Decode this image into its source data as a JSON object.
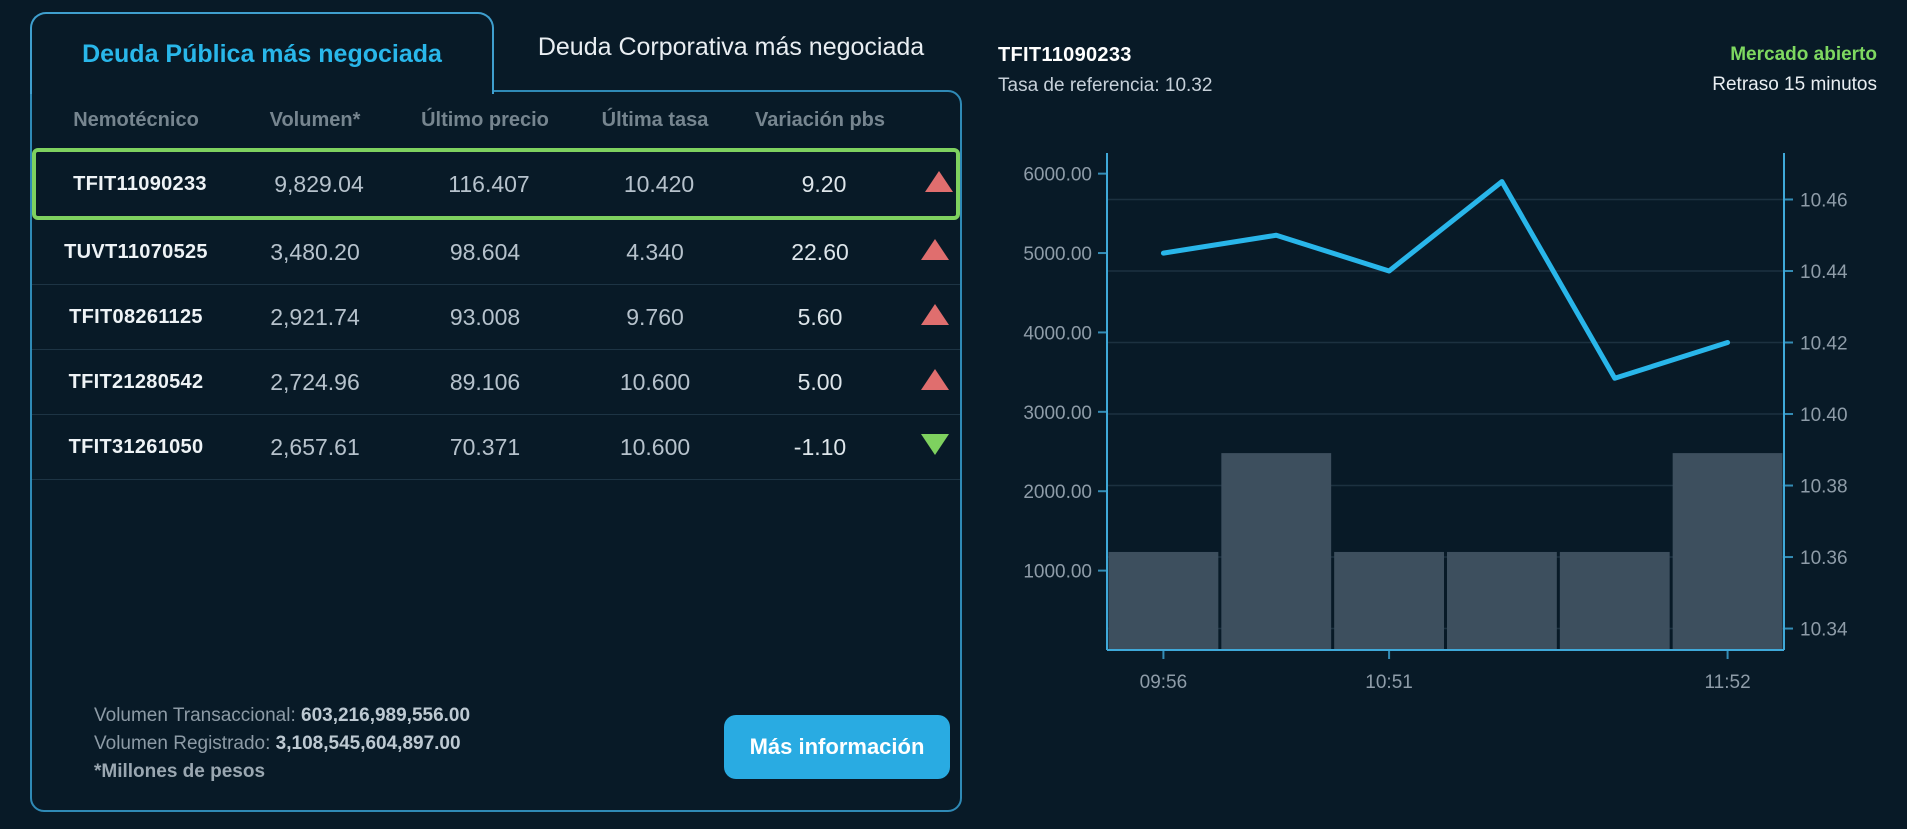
{
  "colors": {
    "accent": "#29abe2",
    "line": "#29b6ea",
    "bar": "#3d4f5e",
    "arrow_up": "#e06e6e",
    "arrow_down": "#7ed15f",
    "status_open": "#7ed860",
    "selected_row_border": "#7ed15f",
    "axis": "#3fa9d9",
    "grid": "#1c3140",
    "axis_label": "#8e9ca8"
  },
  "tabs": {
    "active_label": "Deuda Pública más negociada",
    "inactive_label": "Deuda Corporativa más negociada"
  },
  "table": {
    "headers": [
      "Nemotécnico",
      "Volumen*",
      "Último precio",
      "Última tasa",
      "Variación pbs"
    ],
    "rows": [
      {
        "nemo": "TFIT11090233",
        "volumen": "9,829.04",
        "precio": "116.407",
        "tasa": "10.420",
        "variacion": "9.20",
        "direction": "up",
        "selected": true
      },
      {
        "nemo": "TUVT11070525",
        "volumen": "3,480.20",
        "precio": "98.604",
        "tasa": "4.340",
        "variacion": "22.60",
        "direction": "up",
        "selected": false
      },
      {
        "nemo": "TFIT08261125",
        "volumen": "2,921.74",
        "precio": "93.008",
        "tasa": "9.760",
        "variacion": "5.60",
        "direction": "up",
        "selected": false
      },
      {
        "nemo": "TFIT21280542",
        "volumen": "2,724.96",
        "precio": "89.106",
        "tasa": "10.600",
        "variacion": "5.00",
        "direction": "up",
        "selected": false
      },
      {
        "nemo": "TFIT31261050",
        "volumen": "2,657.61",
        "precio": "70.371",
        "tasa": "10.600",
        "variacion": "-1.10",
        "direction": "down",
        "selected": false
      }
    ],
    "footer": {
      "transaccional_label": "Volumen Transaccional:",
      "transaccional_value": "603,216,989,556.00",
      "registrado_label": "Volumen Registrado:",
      "registrado_value": "3,108,545,604,897.00",
      "note": "*Millones de pesos"
    },
    "button_label": "Más información"
  },
  "chart_header": {
    "title": "TFIT11090233",
    "subtitle": "Tasa de referencia: 10.32",
    "status": "Mercado abierto",
    "delay": "Retraso 15 minutos"
  },
  "chart_data": {
    "type": "line+bar",
    "title": "TFIT11090233",
    "x_tick_labels": [
      {
        "index": 0,
        "label": "09:56"
      },
      {
        "index": 2,
        "label": "10:51"
      },
      {
        "index": 5,
        "label": "11:52"
      }
    ],
    "bars": {
      "axis": "left",
      "values": [
        1235,
        2480,
        1235,
        1235,
        1235,
        2480
      ],
      "color": "#3d4f5e"
    },
    "line": {
      "axis": "right",
      "values": [
        10.445,
        10.45,
        10.44,
        10.465,
        10.41,
        10.42
      ],
      "color": "#29b6ea"
    },
    "left_axis": {
      "ticks": [
        6000,
        5000,
        4000,
        3000,
        2000,
        1000
      ],
      "top_value": 6260,
      "bottom_value": 0,
      "decimals": 2
    },
    "right_axis": {
      "ticks": [
        10.46,
        10.44,
        10.42,
        10.4,
        10.38,
        10.36,
        10.34
      ],
      "top_value": 10.473,
      "bottom_value": 10.334,
      "decimals": 2
    },
    "grid": "horizontal-at-right-ticks",
    "legend": "none"
  }
}
